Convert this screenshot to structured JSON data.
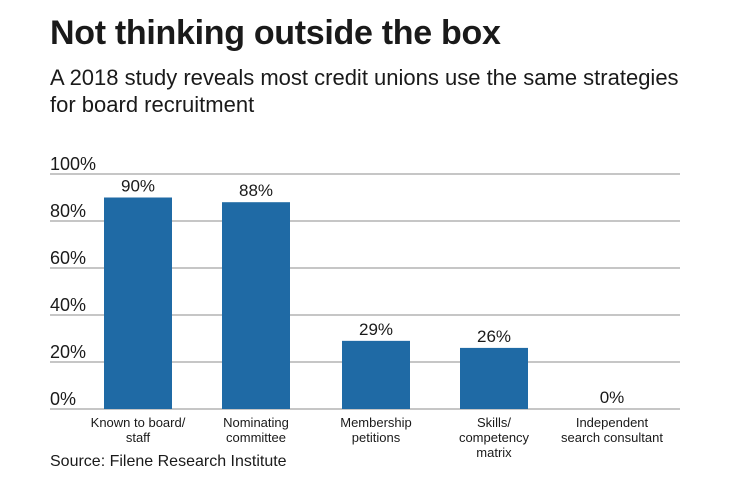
{
  "header": {
    "title": "Not thinking outside the box",
    "subtitle": "A 2018 study reveals most credit unions use the same strategies for board recruitment"
  },
  "footer": {
    "source": "Source: Filene Research Institute"
  },
  "colors": {
    "bar": "#1f6aa5",
    "grid": "#8c8c8c",
    "text": "#1a1a1a"
  },
  "chart_data": {
    "type": "bar",
    "categories": [
      [
        "Known to board/",
        "staff"
      ],
      [
        "Nominating",
        "committee"
      ],
      [
        "Membership",
        "petitions"
      ],
      [
        "Skills/",
        "competency",
        "matrix"
      ],
      [
        "Independent",
        "search consultant"
      ]
    ],
    "values": [
      90,
      88,
      29,
      26,
      0
    ],
    "value_labels": [
      "90%",
      "88%",
      "29%",
      "26%",
      "0%"
    ],
    "yticks": [
      0,
      20,
      40,
      60,
      80,
      100
    ],
    "ytick_labels": [
      "0%",
      "20%",
      "40%",
      "60%",
      "80%",
      "100%"
    ],
    "ylim": [
      0,
      100
    ],
    "grid": true,
    "legend": "none"
  }
}
